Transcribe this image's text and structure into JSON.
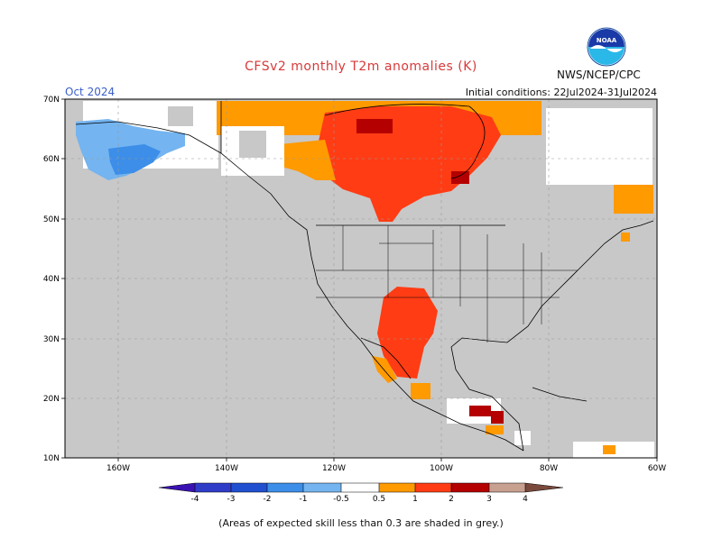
{
  "header": {
    "title": "CFSv2 monthly T2m anomalies (K)",
    "month": "Oct 2024",
    "initial_conditions": "Initial conditions: 22Jul2024-31Jul2024",
    "agency": "NWS/NCEP/CPC",
    "logo_text": "NOAA"
  },
  "map": {
    "latitude_labels": [
      "70N",
      "60N",
      "50N",
      "40N",
      "30N",
      "20N",
      "10N"
    ],
    "longitude_labels": [
      "160W",
      "140W",
      "120W",
      "100W",
      "80W",
      "60W"
    ],
    "background_color": "#c8c8c8",
    "regions": [
      {
        "label": "Canada (north-central)",
        "anomaly": "1 to 2",
        "color": "#ff3c14"
      },
      {
        "label": "Canada (southern fringe)",
        "anomaly": "0.5 to 1",
        "color": "#ff9a00"
      },
      {
        "label": "Southwest US / northern Mexico",
        "anomaly": "1 to 2",
        "color": "#ff3c14"
      },
      {
        "label": "Alaska",
        "anomaly": "-1 to -0.5",
        "color": "#74b4f0"
      },
      {
        "label": "Hudson Bay",
        "anomaly": "2 to 3",
        "color": "#b40000"
      }
    ]
  },
  "colorbar": {
    "labels": [
      "-4",
      "-3",
      "-2",
      "-1",
      "-0.5",
      "0.5",
      "1",
      "2",
      "3",
      "4"
    ],
    "colors": [
      "#3a12b4",
      "#2050d0",
      "#3c8ee8",
      "#74b4f0",
      "#ffffff",
      "#ff9a00",
      "#ff3c14",
      "#b40000",
      "#c8a090",
      "#7a4a3c"
    ]
  },
  "footnote": "(Areas of expected skill less than 0.3 are shaded in grey.)"
}
